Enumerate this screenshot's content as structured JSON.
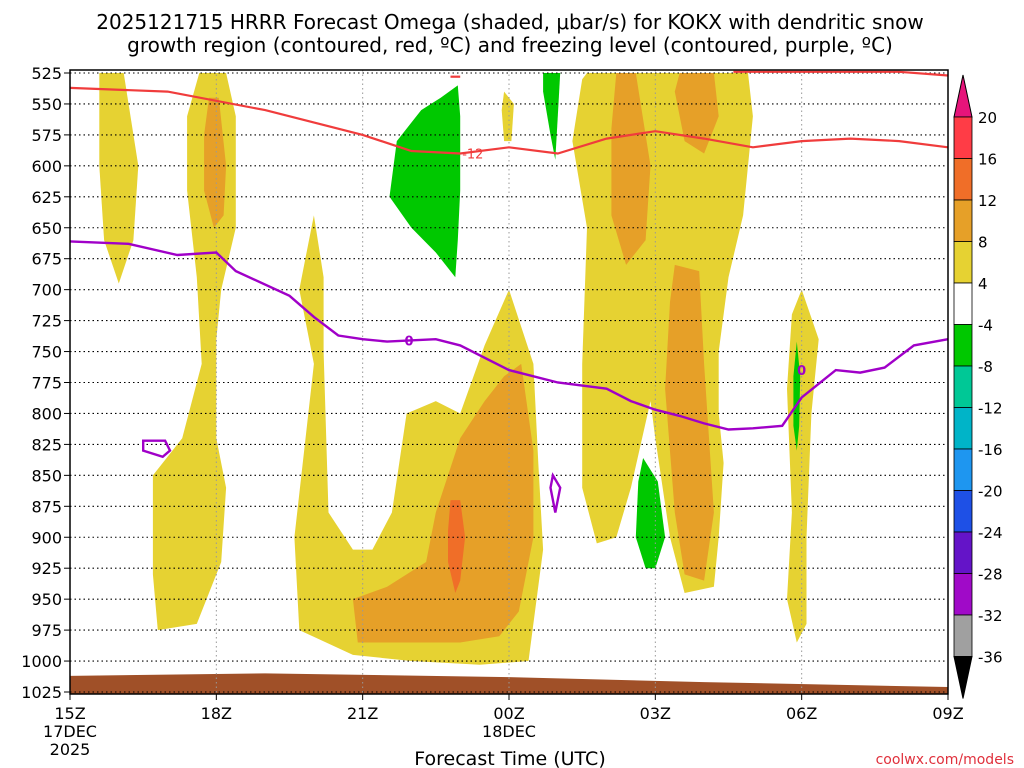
{
  "chart_data": {
    "type": "time-height cross section",
    "title_line1": "2025121715 HRRR Forecast Omega (shaded, μbar/s) for KOKX with dendritic snow",
    "title_line2": "growth region (contoured, red, ºC) and freezing level (contoured, purple, ºC)",
    "xlabel": "Forecast Time (UTC)",
    "credit": "coolwx.com/models",
    "y_axis": {
      "unit": "hPa",
      "ticks": [
        "525",
        "550",
        "575",
        "600",
        "625",
        "650",
        "675",
        "700",
        "725",
        "750",
        "775",
        "800",
        "825",
        "850",
        "875",
        "900",
        "925",
        "950",
        "975",
        "1000",
        "1025"
      ],
      "range": [
        525,
        1025
      ]
    },
    "x_axis": {
      "unit": "hours from 15Z 17DEC2025",
      "range": [
        0,
        18
      ],
      "ticks": [
        {
          "h": 0,
          "label": "15Z",
          "sub1": "17DEC",
          "sub2": "2025"
        },
        {
          "h": 3,
          "label": "18Z",
          "sub1": "",
          "sub2": ""
        },
        {
          "h": 6,
          "label": "21Z",
          "sub1": "",
          "sub2": ""
        },
        {
          "h": 9,
          "label": "00Z",
          "sub1": "18DEC",
          "sub2": ""
        },
        {
          "h": 12,
          "label": "03Z",
          "sub1": "",
          "sub2": ""
        },
        {
          "h": 15,
          "label": "06Z",
          "sub1": "",
          "sub2": ""
        },
        {
          "h": 18,
          "label": "09Z",
          "sub1": "",
          "sub2": ""
        }
      ]
    },
    "colorbar": {
      "levels": [
        "20",
        "16",
        "12",
        "8",
        "4",
        "-4",
        "-8",
        "-12",
        "-16",
        "-20",
        "-24",
        "-28",
        "-32",
        "-36"
      ],
      "colors": [
        "#ff3c46",
        "#f06e28",
        "#e6a028",
        "#e6d232",
        "#ffffff",
        "#00c800",
        "#00c896",
        "#00b4c8",
        "#1e96f0",
        "#1e50e6",
        "#6414c8",
        "#a00ac8",
        "#a0a0a0"
      ],
      "top_arrow_color": "#e6147a",
      "bottom_arrow_color": "#000000"
    },
    "omega_fields": [
      {
        "color": "#e6d232",
        "pts": [
          [
            0.6,
            525
          ],
          [
            1.1,
            525
          ],
          [
            1.4,
            600
          ],
          [
            1.3,
            660
          ],
          [
            1.0,
            695
          ],
          [
            0.7,
            660
          ],
          [
            0.6,
            600
          ]
        ]
      },
      {
        "color": "#e6d232",
        "pts": [
          [
            2.65,
            525
          ],
          [
            3.2,
            525
          ],
          [
            3.4,
            560
          ],
          [
            3.4,
            650
          ],
          [
            3.1,
            700
          ],
          [
            3.0,
            740
          ],
          [
            3.0,
            820
          ],
          [
            3.2,
            860
          ],
          [
            3.1,
            920
          ],
          [
            2.6,
            970
          ],
          [
            1.8,
            975
          ],
          [
            1.7,
            930
          ],
          [
            1.7,
            850
          ],
          [
            2.3,
            820
          ],
          [
            2.7,
            760
          ],
          [
            2.6,
            690
          ],
          [
            2.4,
            620
          ],
          [
            2.4,
            560
          ]
        ]
      },
      {
        "color": "#e6a028",
        "pts": [
          [
            2.85,
            545
          ],
          [
            3.05,
            545
          ],
          [
            3.2,
            600
          ],
          [
            3.15,
            640
          ],
          [
            2.95,
            650
          ],
          [
            2.75,
            620
          ],
          [
            2.75,
            575
          ]
        ]
      },
      {
        "color": "#e6d232",
        "pts": [
          [
            5.0,
            640
          ],
          [
            5.2,
            690
          ],
          [
            5.2,
            750
          ],
          [
            5.3,
            880
          ],
          [
            5.8,
            910
          ],
          [
            6.2,
            910
          ],
          [
            6.6,
            880
          ],
          [
            6.9,
            800
          ],
          [
            7.5,
            790
          ],
          [
            8.0,
            800
          ],
          [
            8.5,
            745
          ],
          [
            9.0,
            700
          ],
          [
            9.5,
            760
          ],
          [
            9.6,
            840
          ],
          [
            9.7,
            910
          ],
          [
            9.4,
            1000
          ],
          [
            8.4,
            1003
          ],
          [
            7.0,
            1000
          ],
          [
            5.8,
            995
          ],
          [
            4.7,
            975
          ],
          [
            4.6,
            900
          ],
          [
            5.0,
            760
          ],
          [
            4.7,
            700
          ],
          [
            4.9,
            660
          ]
        ]
      },
      {
        "color": "#e6a028",
        "pts": [
          [
            8.9,
            770
          ],
          [
            9.25,
            760
          ],
          [
            9.5,
            830
          ],
          [
            9.5,
            900
          ],
          [
            9.2,
            960
          ],
          [
            8.8,
            980
          ],
          [
            8.0,
            985
          ],
          [
            7.0,
            985
          ],
          [
            5.9,
            985
          ],
          [
            5.8,
            950
          ],
          [
            6.5,
            940
          ],
          [
            7.3,
            920
          ],
          [
            7.5,
            880
          ],
          [
            8.0,
            820
          ],
          [
            8.5,
            790
          ]
        ]
      },
      {
        "color": "#f06e28",
        "pts": [
          [
            7.8,
            870
          ],
          [
            8.0,
            870
          ],
          [
            8.1,
            900
          ],
          [
            8.0,
            935
          ],
          [
            7.9,
            945
          ],
          [
            7.75,
            920
          ],
          [
            7.75,
            895
          ]
        ]
      },
      {
        "color": "#e6d232",
        "pts": [
          [
            10.6,
            525
          ],
          [
            13.9,
            525
          ],
          [
            14.0,
            560
          ],
          [
            13.8,
            640
          ],
          [
            13.5,
            690
          ],
          [
            13.3,
            750
          ],
          [
            13.3,
            800
          ],
          [
            13.4,
            840
          ],
          [
            13.3,
            900
          ],
          [
            13.2,
            940
          ],
          [
            12.6,
            945
          ],
          [
            12.3,
            900
          ],
          [
            12.0,
            820
          ],
          [
            11.9,
            790
          ],
          [
            11.5,
            860
          ],
          [
            11.2,
            900
          ],
          [
            10.8,
            905
          ],
          [
            10.5,
            860
          ],
          [
            10.5,
            760
          ],
          [
            10.6,
            650
          ],
          [
            10.3,
            580
          ],
          [
            10.5,
            530
          ]
        ]
      },
      {
        "color": "#e6a028",
        "pts": [
          [
            11.2,
            525
          ],
          [
            11.6,
            525
          ],
          [
            11.9,
            600
          ],
          [
            11.8,
            660
          ],
          [
            11.4,
            680
          ],
          [
            11.1,
            640
          ],
          [
            11.1,
            570
          ]
        ]
      },
      {
        "color": "#e6a028",
        "pts": [
          [
            12.5,
            525
          ],
          [
            13.2,
            525
          ],
          [
            13.3,
            560
          ],
          [
            13.0,
            590
          ],
          [
            12.6,
            580
          ],
          [
            12.4,
            540
          ]
        ]
      },
      {
        "color": "#e6a028",
        "pts": [
          [
            12.4,
            680
          ],
          [
            12.9,
            685
          ],
          [
            13.0,
            760
          ],
          [
            13.2,
            880
          ],
          [
            13.0,
            935
          ],
          [
            12.6,
            930
          ],
          [
            12.4,
            880
          ],
          [
            12.2,
            780
          ],
          [
            12.3,
            710
          ]
        ]
      },
      {
        "color": "#e6d232",
        "pts": [
          [
            15.0,
            700
          ],
          [
            15.35,
            740
          ],
          [
            15.2,
            800
          ],
          [
            15.1,
            900
          ],
          [
            15.1,
            970
          ],
          [
            14.9,
            985
          ],
          [
            14.7,
            950
          ],
          [
            14.8,
            880
          ],
          [
            14.7,
            780
          ],
          [
            14.8,
            720
          ]
        ]
      },
      {
        "color": "#e6d232",
        "pts": [
          [
            8.9,
            540
          ],
          [
            9.1,
            550
          ],
          [
            9.05,
            580
          ],
          [
            8.9,
            580
          ],
          [
            8.85,
            555
          ]
        ]
      },
      {
        "color": "#00c800",
        "pts": [
          [
            7.95,
            535
          ],
          [
            8.0,
            560
          ],
          [
            8.0,
            620
          ],
          [
            7.95,
            660
          ],
          [
            7.9,
            690
          ],
          [
            7.5,
            670
          ],
          [
            7.0,
            650
          ],
          [
            6.55,
            625
          ],
          [
            6.7,
            580
          ],
          [
            7.2,
            555
          ],
          [
            7.6,
            545
          ]
        ]
      },
      {
        "color": "#00c800",
        "pts": [
          [
            9.7,
            525
          ],
          [
            10.05,
            525
          ],
          [
            10.0,
            560
          ],
          [
            9.95,
            595
          ],
          [
            9.85,
            575
          ],
          [
            9.7,
            540
          ]
        ]
      },
      {
        "color": "#00c800",
        "pts": [
          [
            11.75,
            836
          ],
          [
            12.05,
            855
          ],
          [
            12.2,
            900
          ],
          [
            12.0,
            925
          ],
          [
            11.8,
            925
          ],
          [
            11.6,
            900
          ],
          [
            11.65,
            855
          ]
        ]
      },
      {
        "color": "#00c800",
        "pts": [
          [
            14.9,
            742
          ],
          [
            14.97,
            770
          ],
          [
            14.95,
            810
          ],
          [
            14.9,
            830
          ],
          [
            14.83,
            810
          ],
          [
            14.83,
            770
          ]
        ]
      }
    ],
    "terrain": {
      "color": "#a05028",
      "top": [
        [
          0,
          1012
        ],
        [
          4,
          1010
        ],
        [
          9,
          1013
        ],
        [
          13,
          1017
        ],
        [
          18,
          1021
        ]
      ]
    },
    "dgz_contour": {
      "color": "#f03c3c",
      "label": "-12",
      "label_at": [
        8.0,
        590
      ],
      "pts": [
        [
          0,
          537
        ],
        [
          2,
          540
        ],
        [
          4,
          555
        ],
        [
          6,
          575
        ],
        [
          7,
          588
        ],
        [
          8,
          590
        ],
        [
          9,
          585
        ],
        [
          10,
          590
        ],
        [
          11,
          578
        ],
        [
          12,
          572
        ],
        [
          13,
          578
        ],
        [
          14,
          585
        ],
        [
          15,
          580
        ],
        [
          16,
          578
        ],
        [
          17,
          580
        ],
        [
          18,
          585
        ]
      ]
    },
    "dgz_contour_top": {
      "color": "#f03c3c",
      "pts": [
        [
          7.8,
          528
        ],
        [
          8.0,
          528
        ]
      ]
    },
    "dgz_contour_top2": {
      "color": "#f03c3c",
      "pts": [
        [
          13.6,
          524
        ],
        [
          17.0,
          524
        ],
        [
          18,
          527
        ]
      ]
    },
    "freezing_contour": {
      "color": "#a000c8",
      "label": "0",
      "label_at": [
        6.95,
        741
      ],
      "pts": [
        [
          0,
          661
        ],
        [
          1.2,
          663
        ],
        [
          2.2,
          672
        ],
        [
          3.0,
          670
        ],
        [
          3.4,
          685
        ],
        [
          4.5,
          705
        ],
        [
          5.0,
          722
        ],
        [
          5.5,
          737
        ],
        [
          6.0,
          740
        ],
        [
          6.5,
          742
        ],
        [
          7.5,
          740
        ],
        [
          8.0,
          745
        ],
        [
          9.0,
          765
        ],
        [
          10.0,
          775
        ],
        [
          11.0,
          780
        ],
        [
          11.5,
          790
        ],
        [
          12.0,
          797
        ],
        [
          12.5,
          802
        ],
        [
          13.0,
          808
        ],
        [
          13.5,
          813
        ],
        [
          14.0,
          812
        ],
        [
          14.6,
          810
        ],
        [
          15.0,
          787
        ],
        [
          15.7,
          765
        ],
        [
          16.2,
          767
        ],
        [
          16.7,
          763
        ],
        [
          17.3,
          745
        ],
        [
          18.0,
          740
        ]
      ]
    },
    "freezing_contour_label2": {
      "label": "0",
      "at": [
        15.0,
        765
      ]
    },
    "freezing_loop1": {
      "color": "#a000c8",
      "pts": [
        [
          1.5,
          822
        ],
        [
          1.95,
          822
        ],
        [
          2.05,
          830
        ],
        [
          1.9,
          835
        ],
        [
          1.5,
          830
        ]
      ]
    },
    "freezing_loop2": {
      "color": "#a000c8",
      "pts": [
        [
          9.9,
          850
        ],
        [
          10.05,
          860
        ],
        [
          9.95,
          880
        ],
        [
          9.85,
          860
        ]
      ]
    }
  }
}
